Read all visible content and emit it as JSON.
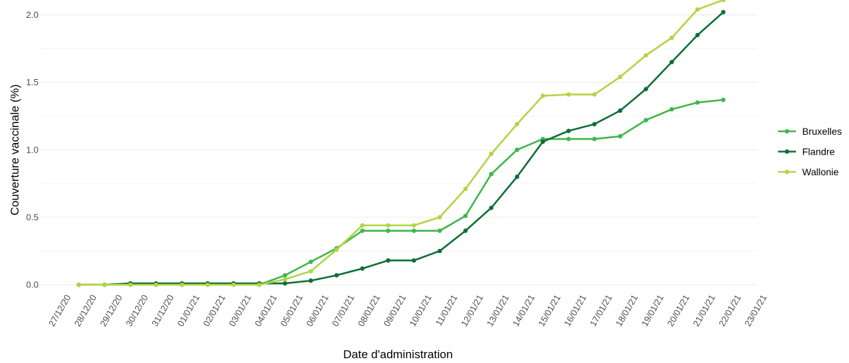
{
  "chart_data": {
    "type": "line",
    "x_label": "Date d'administration",
    "y_label": "Couverture vaccinale (%)",
    "categories": [
      "27/12/20",
      "28/12/20",
      "29/12/20",
      "30/12/20",
      "31/12/20",
      "01/01/21",
      "02/01/21",
      "03/01/21",
      "04/01/21",
      "05/01/21",
      "06/01/21",
      "07/01/21",
      "08/01/21",
      "09/01/21",
      "10/01/21",
      "11/01/21",
      "12/01/21",
      "13/01/21",
      "14/01/21",
      "15/01/21",
      "16/01/21",
      "17/01/21",
      "18/01/21",
      "19/01/21",
      "20/01/21",
      "21/01/21",
      "22/01/21",
      "23/01/21"
    ],
    "series": [
      {
        "name": "Bruxelles",
        "color": "#41b64a",
        "values": [
          null,
          0,
          0,
          0,
          0,
          0,
          0,
          0,
          0,
          0.07,
          0.17,
          0.27,
          0.4,
          0.4,
          0.4,
          0.4,
          0.51,
          0.82,
          1.0,
          1.08,
          1.08,
          1.08,
          1.1,
          1.22,
          1.3,
          1.35,
          1.37,
          null
        ]
      },
      {
        "name": "Flandre",
        "color": "#0f6e38",
        "values": [
          null,
          0,
          0,
          0.01,
          0.01,
          0.01,
          0.01,
          0.01,
          0.01,
          0.01,
          0.03,
          0.07,
          0.12,
          0.18,
          0.18,
          0.25,
          0.4,
          0.57,
          0.8,
          1.06,
          1.14,
          1.19,
          1.29,
          1.45,
          1.65,
          1.85,
          2.02,
          null
        ]
      },
      {
        "name": "Wallonie",
        "color": "#b3d444",
        "values": [
          null,
          0,
          0,
          0,
          0,
          0,
          0,
          0,
          0,
          0.04,
          0.1,
          0.26,
          0.44,
          0.44,
          0.44,
          0.5,
          0.71,
          0.97,
          1.19,
          1.4,
          1.41,
          1.41,
          1.54,
          1.7,
          1.83,
          2.04,
          2.11,
          null
        ]
      }
    ],
    "ylim": [
      -0.04,
      2.11
    ],
    "yticks": [
      {
        "value": 0,
        "label": "0.0"
      },
      0.5,
      {
        "value": 1,
        "label": "1.0"
      },
      1.5,
      {
        "value": 2,
        "label": "2.0"
      }
    ],
    "grid": true,
    "legend": "right"
  }
}
